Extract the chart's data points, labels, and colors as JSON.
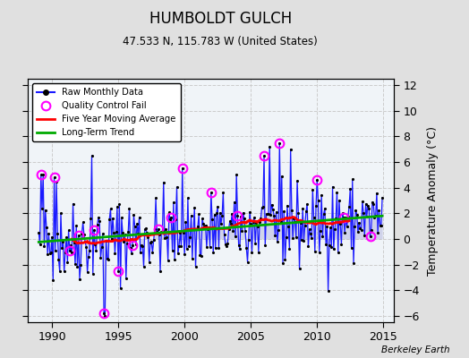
{
  "title": "HUMBOLDT GULCH",
  "subtitle": "47.533 N, 115.783 W (United States)",
  "ylabel": "Temperature Anomaly (°C)",
  "credit": "Berkeley Earth",
  "xlim": [
    1988.2,
    2015.8
  ],
  "ylim": [
    -6.5,
    12.5
  ],
  "yticks": [
    -6,
    -4,
    -2,
    0,
    2,
    4,
    6,
    8,
    10,
    12
  ],
  "xticks": [
    1990,
    1995,
    2000,
    2005,
    2010,
    2015
  ],
  "bg_color": "#e0e0e0",
  "plot_bg_color": "#f0f4f8",
  "raw_color": "#1a1aff",
  "raw_fill_color": "#8888cc",
  "moving_avg_color": "#ff0000",
  "trend_color": "#00aa00",
  "seed": 42
}
